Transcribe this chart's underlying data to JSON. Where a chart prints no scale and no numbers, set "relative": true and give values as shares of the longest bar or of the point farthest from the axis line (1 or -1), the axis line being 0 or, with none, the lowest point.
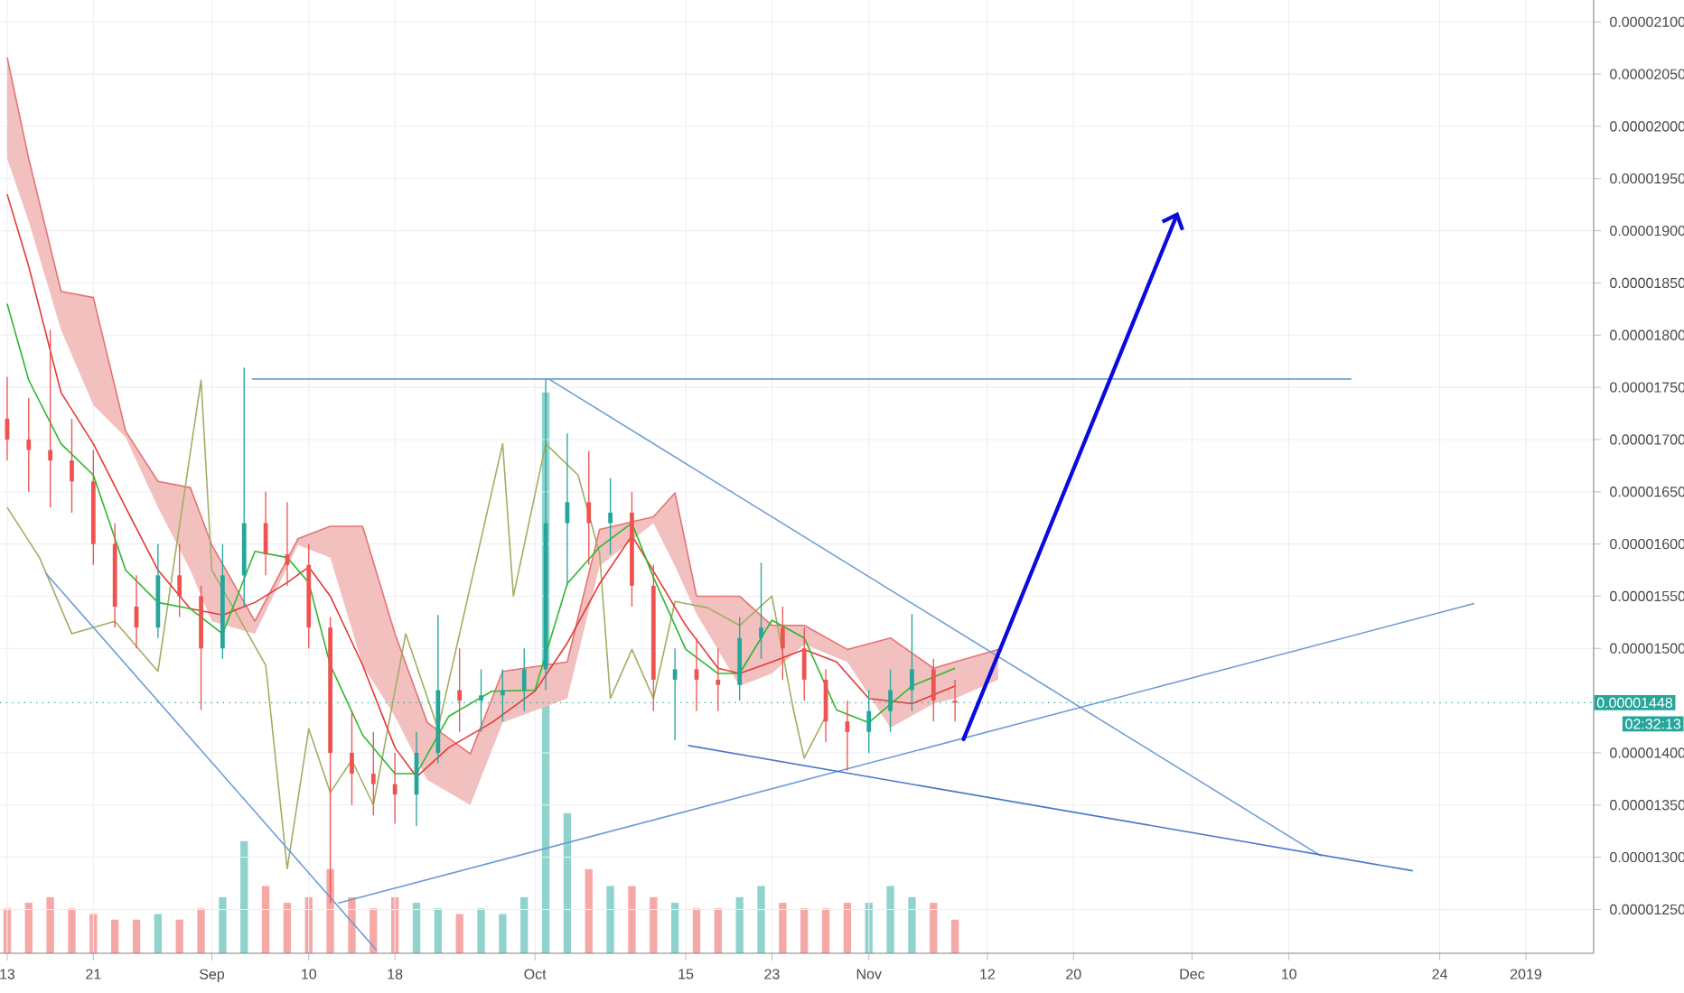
{
  "chart_data": [
    {
      "type": "candlestick",
      "grid": true,
      "xlim": [
        "2018-08-12T08:00",
        "2019-01-07T07:00"
      ],
      "xticks": [
        {
          "value": "2018-08-13",
          "label": "13"
        },
        {
          "value": "2018-08-21",
          "label": "21"
        },
        {
          "value": "2018-09-01",
          "label": "Sep"
        },
        {
          "value": "2018-09-10",
          "label": "10"
        },
        {
          "value": "2018-09-18",
          "label": "18"
        },
        {
          "value": "2018-10-01",
          "label": "Oct"
        },
        {
          "value": "2018-10-15",
          "label": "15"
        },
        {
          "value": "2018-10-23",
          "label": "23"
        },
        {
          "value": "2018-11-01",
          "label": "Nov"
        },
        {
          "value": "2018-11-12",
          "label": "12"
        },
        {
          "value": "2018-11-20",
          "label": "20"
        },
        {
          "value": "2018-12-01",
          "label": "Dec"
        },
        {
          "value": "2018-12-10",
          "label": "10"
        },
        {
          "value": "2018-12-24",
          "label": "24"
        },
        {
          "value": "2019-01-01",
          "label": "2019"
        }
      ],
      "ylim": [
        1.208e-05,
        2.121e-05
      ],
      "yticks": [
        {
          "value": 1.25e-05,
          "label": "0.00001250"
        },
        {
          "value": 1.3e-05,
          "label": "0.00001300"
        },
        {
          "value": 1.35e-05,
          "label": "0.00001350"
        },
        {
          "value": 1.4e-05,
          "label": "0.00001400"
        },
        {
          "value": 1.5e-05,
          "label": "0.00001500"
        },
        {
          "value": 1.55e-05,
          "label": "0.00001550"
        },
        {
          "value": 1.6e-05,
          "label": "0.00001600"
        },
        {
          "value": 1.65e-05,
          "label": "0.00001650"
        },
        {
          "value": 1.7e-05,
          "label": "0.00001700"
        },
        {
          "value": 1.75e-05,
          "label": "0.00001750"
        },
        {
          "value": 1.8e-05,
          "label": "0.00001800"
        },
        {
          "value": 1.85e-05,
          "label": "0.00001850"
        },
        {
          "value": 1.9e-05,
          "label": "0.00001900"
        },
        {
          "value": 1.95e-05,
          "label": "0.00001950"
        },
        {
          "value": 2e-05,
          "label": "0.00002000"
        },
        {
          "value": 2.05e-05,
          "label": "0.00002050"
        },
        {
          "value": 2.1e-05,
          "label": "0.00002100"
        }
      ],
      "x": [
        "2018-08-13",
        "2018-08-15",
        "2018-08-17",
        "2018-08-19",
        "2018-08-21",
        "2018-08-23",
        "2018-08-25",
        "2018-08-27",
        "2018-08-29",
        "2018-08-31",
        "2018-09-02",
        "2018-09-04",
        "2018-09-06",
        "2018-09-08",
        "2018-09-10",
        "2018-09-12",
        "2018-09-14",
        "2018-09-16",
        "2018-09-18",
        "2018-09-20",
        "2018-09-22",
        "2018-09-24",
        "2018-09-26",
        "2018-09-28",
        "2018-09-30",
        "2018-10-02",
        "2018-10-04",
        "2018-10-06",
        "2018-10-08",
        "2018-10-10",
        "2018-10-12",
        "2018-10-14",
        "2018-10-16",
        "2018-10-18",
        "2018-10-20",
        "2018-10-22",
        "2018-10-24",
        "2018-10-26",
        "2018-10-28",
        "2018-10-30",
        "2018-11-01",
        "2018-11-03",
        "2018-11-05",
        "2018-11-07",
        "2018-11-09"
      ],
      "ohlc": [
        [
          1.72e-05,
          1.76e-05,
          1.68e-05,
          1.7e-05
        ],
        [
          1.7e-05,
          1.74e-05,
          1.65e-05,
          1.69e-05
        ],
        [
          1.69e-05,
          1.805e-05,
          1.635e-05,
          1.68e-05
        ],
        [
          1.68e-05,
          1.72e-05,
          1.63e-05,
          1.66e-05
        ],
        [
          1.66e-05,
          1.69e-05,
          1.58e-05,
          1.6e-05
        ],
        [
          1.6e-05,
          1.62e-05,
          1.52e-05,
          1.54e-05
        ],
        [
          1.54e-05,
          1.57e-05,
          1.5e-05,
          1.52e-05
        ],
        [
          1.52e-05,
          1.6e-05,
          1.51e-05,
          1.57e-05
        ],
        [
          1.57e-05,
          1.6e-05,
          1.53e-05,
          1.55e-05
        ],
        [
          1.55e-05,
          1.56e-05,
          1.441e-05,
          1.5e-05
        ],
        [
          1.5e-05,
          1.6e-05,
          1.49e-05,
          1.57e-05
        ],
        [
          1.57e-05,
          1.769e-05,
          1.54e-05,
          1.62e-05
        ],
        [
          1.62e-05,
          1.65e-05,
          1.57e-05,
          1.59e-05
        ],
        [
          1.59e-05,
          1.64e-05,
          1.56e-05,
          1.58e-05
        ],
        [
          1.58e-05,
          1.6e-05,
          1.5e-05,
          1.52e-05
        ],
        [
          1.52e-05,
          1.53e-05,
          1.256e-05,
          1.4e-05
        ],
        [
          1.4e-05,
          1.44e-05,
          1.35e-05,
          1.38e-05
        ],
        [
          1.38e-05,
          1.42e-05,
          1.34e-05,
          1.37e-05
        ],
        [
          1.37e-05,
          1.4e-05,
          1.332e-05,
          1.36e-05
        ],
        [
          1.36e-05,
          1.42e-05,
          1.33e-05,
          1.4e-05
        ],
        [
          1.4e-05,
          1.532e-05,
          1.39e-05,
          1.46e-05
        ],
        [
          1.46e-05,
          1.5e-05,
          1.42e-05,
          1.45e-05
        ],
        [
          1.45e-05,
          1.48e-05,
          1.42e-05,
          1.455e-05
        ],
        [
          1.455e-05,
          1.48e-05,
          1.43e-05,
          1.46e-05
        ],
        [
          1.46e-05,
          1.5e-05,
          1.44e-05,
          1.48e-05
        ],
        [
          1.48e-05,
          1.758e-05,
          1.46e-05,
          1.62e-05
        ],
        [
          1.62e-05,
          1.706e-05,
          1.56e-05,
          1.64e-05
        ],
        [
          1.64e-05,
          1.689e-05,
          1.58e-05,
          1.62e-05
        ],
        [
          1.62e-05,
          1.663e-05,
          1.59e-05,
          1.63e-05
        ],
        [
          1.63e-05,
          1.65e-05,
          1.54e-05,
          1.56e-05
        ],
        [
          1.56e-05,
          1.58e-05,
          1.44e-05,
          1.47e-05
        ],
        [
          1.47e-05,
          1.5e-05,
          1.412e-05,
          1.48e-05
        ],
        [
          1.48e-05,
          1.51e-05,
          1.44e-05,
          1.47e-05
        ],
        [
          1.47e-05,
          1.5e-05,
          1.44e-05,
          1.465e-05
        ],
        [
          1.465e-05,
          1.53e-05,
          1.45e-05,
          1.51e-05
        ],
        [
          1.51e-05,
          1.582e-05,
          1.49e-05,
          1.52e-05
        ],
        [
          1.52e-05,
          1.54e-05,
          1.47e-05,
          1.5e-05
        ],
        [
          1.5e-05,
          1.52e-05,
          1.45e-05,
          1.47e-05
        ],
        [
          1.47e-05,
          1.48e-05,
          1.41e-05,
          1.43e-05
        ],
        [
          1.43e-05,
          1.45e-05,
          1.383e-05,
          1.42e-05
        ],
        [
          1.42e-05,
          1.46e-05,
          1.4e-05,
          1.44e-05
        ],
        [
          1.44e-05,
          1.48e-05,
          1.42e-05,
          1.46e-05
        ],
        [
          1.46e-05,
          1.533e-05,
          1.44e-05,
          1.48e-05
        ],
        [
          1.48e-05,
          1.49e-05,
          1.43e-05,
          1.45e-05
        ],
        [
          1.45e-05,
          1.47e-05,
          1.43e-05,
          1.448e-05
        ]
      ],
      "series": [
        {
          "type": "line",
          "color": "#e57373",
          "x": [
            "2018-08-13",
            "2018-08-15",
            "2018-08-18",
            "2018-08-21",
            "2018-08-24",
            "2018-08-27",
            "2018-08-30",
            "2018-09-01",
            "2018-09-05",
            "2018-09-09",
            "2018-09-12",
            "2018-09-15",
            "2018-09-18",
            "2018-09-21",
            "2018-09-25",
            "2018-09-28",
            "2018-10-04",
            "2018-10-07",
            "2018-10-12",
            "2018-10-14",
            "2018-10-16",
            "2018-10-20",
            "2018-10-23",
            "2018-10-26",
            "2018-10-30",
            "2018-11-03",
            "2018-11-07",
            "2018-11-09",
            "2018-11-13"
          ],
          "values": [
            2.066e-05,
            1.969e-05,
            1.842e-05,
            1.836e-05,
            1.708e-05,
            1.66e-05,
            1.654e-05,
            1.599e-05,
            1.526e-05,
            1.605e-05,
            1.617e-05,
            1.617e-05,
            1.514e-05,
            1.429e-05,
            1.399e-05,
            1.478e-05,
            1.487e-05,
            1.614e-05,
            1.626e-05,
            1.649e-05,
            1.55e-05,
            1.55e-05,
            1.522e-05,
            1.522e-05,
            1.499e-05,
            1.51e-05,
            1.481e-05,
            1.487e-05,
            1.499e-05
          ],
          "upper": [
            2.066e-05,
            1.969e-05,
            1.842e-05,
            1.836e-05,
            1.708e-05,
            1.66e-05,
            1.654e-05,
            1.599e-05,
            1.526e-05,
            1.605e-05,
            1.617e-05,
            1.617e-05,
            1.514e-05,
            1.429e-05,
            1.399e-05,
            1.478e-05,
            1.487e-05,
            1.614e-05,
            1.626e-05,
            1.649e-05,
            1.55e-05,
            1.55e-05,
            1.522e-05,
            1.522e-05,
            1.499e-05,
            1.51e-05,
            1.481e-05,
            1.487e-05,
            1.499e-05
          ],
          "lower": [
            1.969e-05,
            1.909e-05,
            1.805e-05,
            1.733e-05,
            1.702e-05,
            1.635e-05,
            1.575e-05,
            1.526e-05,
            1.514e-05,
            1.599e-05,
            1.587e-05,
            1.484e-05,
            1.435e-05,
            1.374e-05,
            1.35e-05,
            1.429e-05,
            1.452e-05,
            1.579e-05,
            1.62e-05,
            1.579e-05,
            1.533e-05,
            1.464e-05,
            1.476e-05,
            1.504e-05,
            1.487e-05,
            1.424e-05,
            1.447e-05,
            1.452e-05,
            1.47e-05
          ]
        },
        {
          "type": "line",
          "color": "#a3ad63",
          "x": [
            "2018-08-13",
            "2018-08-16",
            "2018-08-19",
            "2018-08-23",
            "2018-08-27",
            "2018-08-31",
            "2018-09-01",
            "2018-09-06",
            "2018-09-08",
            "2018-09-10",
            "2018-09-12",
            "2018-09-14",
            "2018-09-16",
            "2018-09-19",
            "2018-09-22",
            "2018-09-28",
            "2018-09-29",
            "2018-10-02",
            "2018-10-05",
            "2018-10-07",
            "2018-10-08",
            "2018-10-10",
            "2018-10-12",
            "2018-10-14",
            "2018-10-17",
            "2018-10-20",
            "2018-10-23",
            "2018-10-25",
            "2018-10-26",
            "2018-10-28"
          ],
          "values": [
            1.635e-05,
            1.587e-05,
            1.514e-05,
            1.526e-05,
            1.478e-05,
            1.757e-05,
            1.575e-05,
            1.484e-05,
            1.289e-05,
            1.423e-05,
            1.362e-05,
            1.393e-05,
            1.35e-05,
            1.514e-05,
            1.423e-05,
            1.696e-05,
            1.55e-05,
            1.696e-05,
            1.666e-05,
            1.591e-05,
            1.452e-05,
            1.499e-05,
            1.452e-05,
            1.545e-05,
            1.539e-05,
            1.522e-05,
            1.55e-05,
            1.441e-05,
            1.395e-05,
            1.435e-05
          ]
        },
        {
          "type": "line",
          "color": "#e53935",
          "x": [
            "2018-08-13",
            "2018-08-15",
            "2018-08-18",
            "2018-08-21",
            "2018-08-24",
            "2018-08-27",
            "2018-08-30",
            "2018-09-02",
            "2018-09-05",
            "2018-09-08",
            "2018-09-10",
            "2018-09-12",
            "2018-09-15",
            "2018-09-18",
            "2018-09-20",
            "2018-09-23",
            "2018-09-27",
            "2018-10-01",
            "2018-10-04",
            "2018-10-07",
            "2018-10-10",
            "2018-10-12",
            "2018-10-15",
            "2018-10-18",
            "2018-10-20",
            "2018-10-23",
            "2018-10-26",
            "2018-10-29",
            "2018-11-01",
            "2018-11-05",
            "2018-11-09"
          ],
          "values": [
            1.935e-05,
            1.866e-05,
            1.745e-05,
            1.696e-05,
            1.635e-05,
            1.575e-05,
            1.538e-05,
            1.532e-05,
            1.544e-05,
            1.563e-05,
            1.578e-05,
            1.55e-05,
            1.484e-05,
            1.405e-05,
            1.377e-05,
            1.405e-05,
            1.429e-05,
            1.459e-05,
            1.505e-05,
            1.562e-05,
            1.608e-05,
            1.574e-05,
            1.522e-05,
            1.481e-05,
            1.476e-05,
            1.487e-05,
            1.499e-05,
            1.487e-05,
            1.452e-05,
            1.447e-05,
            1.464e-05
          ]
        },
        {
          "type": "line",
          "color": "#2eb82e",
          "x": [
            "2018-08-13",
            "2018-08-15",
            "2018-08-18",
            "2018-08-21",
            "2018-08-24",
            "2018-08-27",
            "2018-08-30",
            "2018-09-02",
            "2018-09-05",
            "2018-09-08",
            "2018-09-10",
            "2018-09-12",
            "2018-09-15",
            "2018-09-18",
            "2018-09-20",
            "2018-09-23",
            "2018-09-27",
            "2018-10-01",
            "2018-10-04",
            "2018-10-07",
            "2018-10-10",
            "2018-10-12",
            "2018-10-15",
            "2018-10-18",
            "2018-10-20",
            "2018-10-23",
            "2018-10-26",
            "2018-10-29",
            "2018-11-01",
            "2018-11-05",
            "2018-11-09"
          ],
          "values": [
            1.83e-05,
            1.757e-05,
            1.696e-05,
            1.666e-05,
            1.575e-05,
            1.544e-05,
            1.538e-05,
            1.514e-05,
            1.593e-05,
            1.587e-05,
            1.563e-05,
            1.484e-05,
            1.417e-05,
            1.38e-05,
            1.38e-05,
            1.435e-05,
            1.459e-05,
            1.46e-05,
            1.562e-05,
            1.597e-05,
            1.62e-05,
            1.568e-05,
            1.499e-05,
            1.476e-05,
            1.476e-05,
            1.527e-05,
            1.51e-05,
            1.441e-05,
            1.429e-05,
            1.464e-05,
            1.481e-05
          ]
        },
        {
          "type": "line",
          "color": "#6c9bd2",
          "x": [
            "2018-09-04T17:00",
            "2018-12-15T19:00"
          ],
          "values": [
            1.758e-05,
            1.758e-05
          ]
        },
        {
          "type": "line",
          "color": "#6c9bd2",
          "x": [
            "2018-10-02T07:00",
            "2018-12-13"
          ],
          "values": [
            1.758e-05,
            1.301e-05
          ]
        },
        {
          "type": "line",
          "color": "#6c9bd2",
          "x": [
            "2018-09-12T17:00",
            "2018-12-27T05:00"
          ],
          "values": [
            1.256e-05,
            1.543e-05
          ]
        },
        {
          "type": "line",
          "color": "#4a78c8",
          "x": [
            "2018-10-15T05:00",
            "2018-12-21T12:00"
          ],
          "values": [
            1.407e-05,
            1.287e-05
          ]
        },
        {
          "type": "line",
          "color": "#6c9bd2",
          "x": [
            "2018-08-16T14:00",
            "2018-09-16T07:00"
          ],
          "values": [
            1.572e-05,
            1.211e-05
          ]
        }
      ],
      "ref_lines": [
        {
          "axis": "y",
          "value": 1.448e-05,
          "label": "0.00001448",
          "color": "#26a69a",
          "line_style": "dotted"
        }
      ],
      "annotations": [
        "02:32:13"
      ]
    },
    {
      "type": "bar",
      "relative": true,
      "xlim": [
        "2018-08-12T08:00",
        "2019-01-07T07:00"
      ],
      "x": [
        "2018-08-13",
        "2018-08-15",
        "2018-08-17",
        "2018-08-19",
        "2018-08-21",
        "2018-08-23",
        "2018-08-25",
        "2018-08-27",
        "2018-08-29",
        "2018-08-31",
        "2018-09-02",
        "2018-09-04",
        "2018-09-06",
        "2018-09-08",
        "2018-09-10",
        "2018-09-12",
        "2018-09-14",
        "2018-09-16",
        "2018-09-18",
        "2018-09-20",
        "2018-09-22",
        "2018-09-24",
        "2018-09-26",
        "2018-09-28",
        "2018-09-30",
        "2018-10-02",
        "2018-10-04",
        "2018-10-06",
        "2018-10-08",
        "2018-10-10",
        "2018-10-12",
        "2018-10-14",
        "2018-10-16",
        "2018-10-18",
        "2018-10-20",
        "2018-10-22",
        "2018-10-24",
        "2018-10-26",
        "2018-10-28",
        "2018-10-30",
        "2018-11-01",
        "2018-11-03",
        "2018-11-05",
        "2018-11-07",
        "2018-11-09"
      ],
      "values": [
        0.08,
        0.09,
        0.1,
        0.08,
        0.07,
        0.06,
        0.06,
        0.07,
        0.06,
        0.08,
        0.1,
        0.2,
        0.12,
        0.09,
        0.1,
        0.15,
        0.1,
        0.08,
        0.1,
        0.09,
        0.08,
        0.07,
        0.08,
        0.07,
        0.1,
        1,
        0.25,
        0.15,
        0.12,
        0.12,
        0.1,
        0.09,
        0.08,
        0.08,
        0.1,
        0.12,
        0.09,
        0.08,
        0.08,
        0.09,
        0.09,
        0.12,
        0.1,
        0.09,
        0.06
      ],
      "colors": [
        "#f5a9a7",
        "#f5a9a7",
        "#f5a9a7",
        "#f5a9a7",
        "#f5a9a7",
        "#f5a9a7",
        "#f5a9a7",
        "#8fd3cc",
        "#f5a9a7",
        "#f5a9a7",
        "#8fd3cc",
        "#8fd3cc",
        "#f5a9a7",
        "#f5a9a7",
        "#f5a9a7",
        "#f5a9a7",
        "#f5a9a7",
        "#f5a9a7",
        "#f5a9a7",
        "#8fd3cc",
        "#8fd3cc",
        "#f5a9a7",
        "#8fd3cc",
        "#8fd3cc",
        "#8fd3cc",
        "#8fd3cc",
        "#8fd3cc",
        "#f5a9a7",
        "#8fd3cc",
        "#f5a9a7",
        "#f5a9a7",
        "#8fd3cc",
        "#f5a9a7",
        "#f5a9a7",
        "#8fd3cc",
        "#8fd3cc",
        "#f5a9a7",
        "#f5a9a7",
        "#f5a9a7",
        "#f5a9a7",
        "#8fd3cc",
        "#8fd3cc",
        "#8fd3cc",
        "#f5a9a7",
        "#f5a9a7"
      ]
    }
  ]
}
